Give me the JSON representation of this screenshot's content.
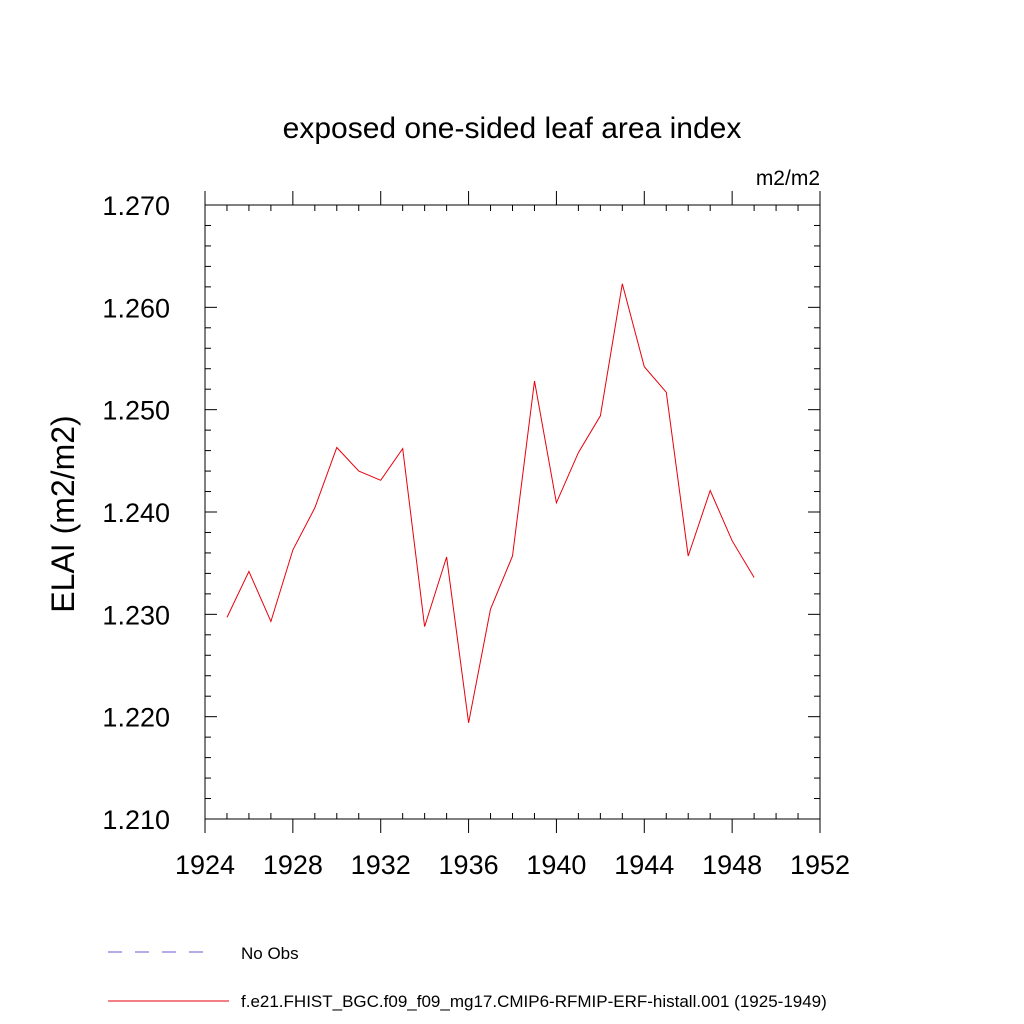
{
  "chart_data": {
    "type": "line",
    "title": "exposed one-sided leaf area index",
    "units": "m2/m2",
    "ylabel": "ELAI  (m2/m2)",
    "xlabel": "",
    "xlim": [
      1924,
      1952
    ],
    "ylim": [
      1.21,
      1.27
    ],
    "x_ticks": [
      "1924",
      "1928",
      "1932",
      "1936",
      "1940",
      "1944",
      "1948",
      "1952"
    ],
    "y_ticks": [
      "1.210",
      "1.220",
      "1.230",
      "1.240",
      "1.250",
      "1.260",
      "1.270"
    ],
    "grid": false,
    "series": [
      {
        "name": "f.e21.FHIST_BGC.f09_f09_mg17.CMIP6-RFMIP-ERF-histall.001 (1925-1949)",
        "color": "#e8000b",
        "x": [
          1925,
          1926,
          1927,
          1928,
          1929,
          1930,
          1931,
          1932,
          1933,
          1934,
          1935,
          1936,
          1937,
          1938,
          1939,
          1940,
          1941,
          1942,
          1943,
          1944,
          1945,
          1946,
          1947,
          1948,
          1949
        ],
        "values": [
          1.2297,
          1.2342,
          1.2293,
          1.2363,
          1.2404,
          1.2463,
          1.244,
          1.2431,
          1.2462,
          1.2288,
          1.2356,
          1.2194,
          1.2305,
          1.2357,
          1.2528,
          1.2409,
          1.2458,
          1.2494,
          1.2623,
          1.2542,
          1.2517,
          1.2357,
          1.2421,
          1.2372,
          1.2336
        ]
      }
    ],
    "legend": [
      {
        "label": "No Obs",
        "style": "dashed",
        "color": "#6a5acd"
      },
      {
        "label": "f.e21.FHIST_BGC.f09_f09_mg17.CMIP6-RFMIP-ERF-histall.001 (1925-1949)",
        "style": "solid",
        "color": "#e8000b"
      }
    ],
    "legend_position": "bottom-left"
  }
}
